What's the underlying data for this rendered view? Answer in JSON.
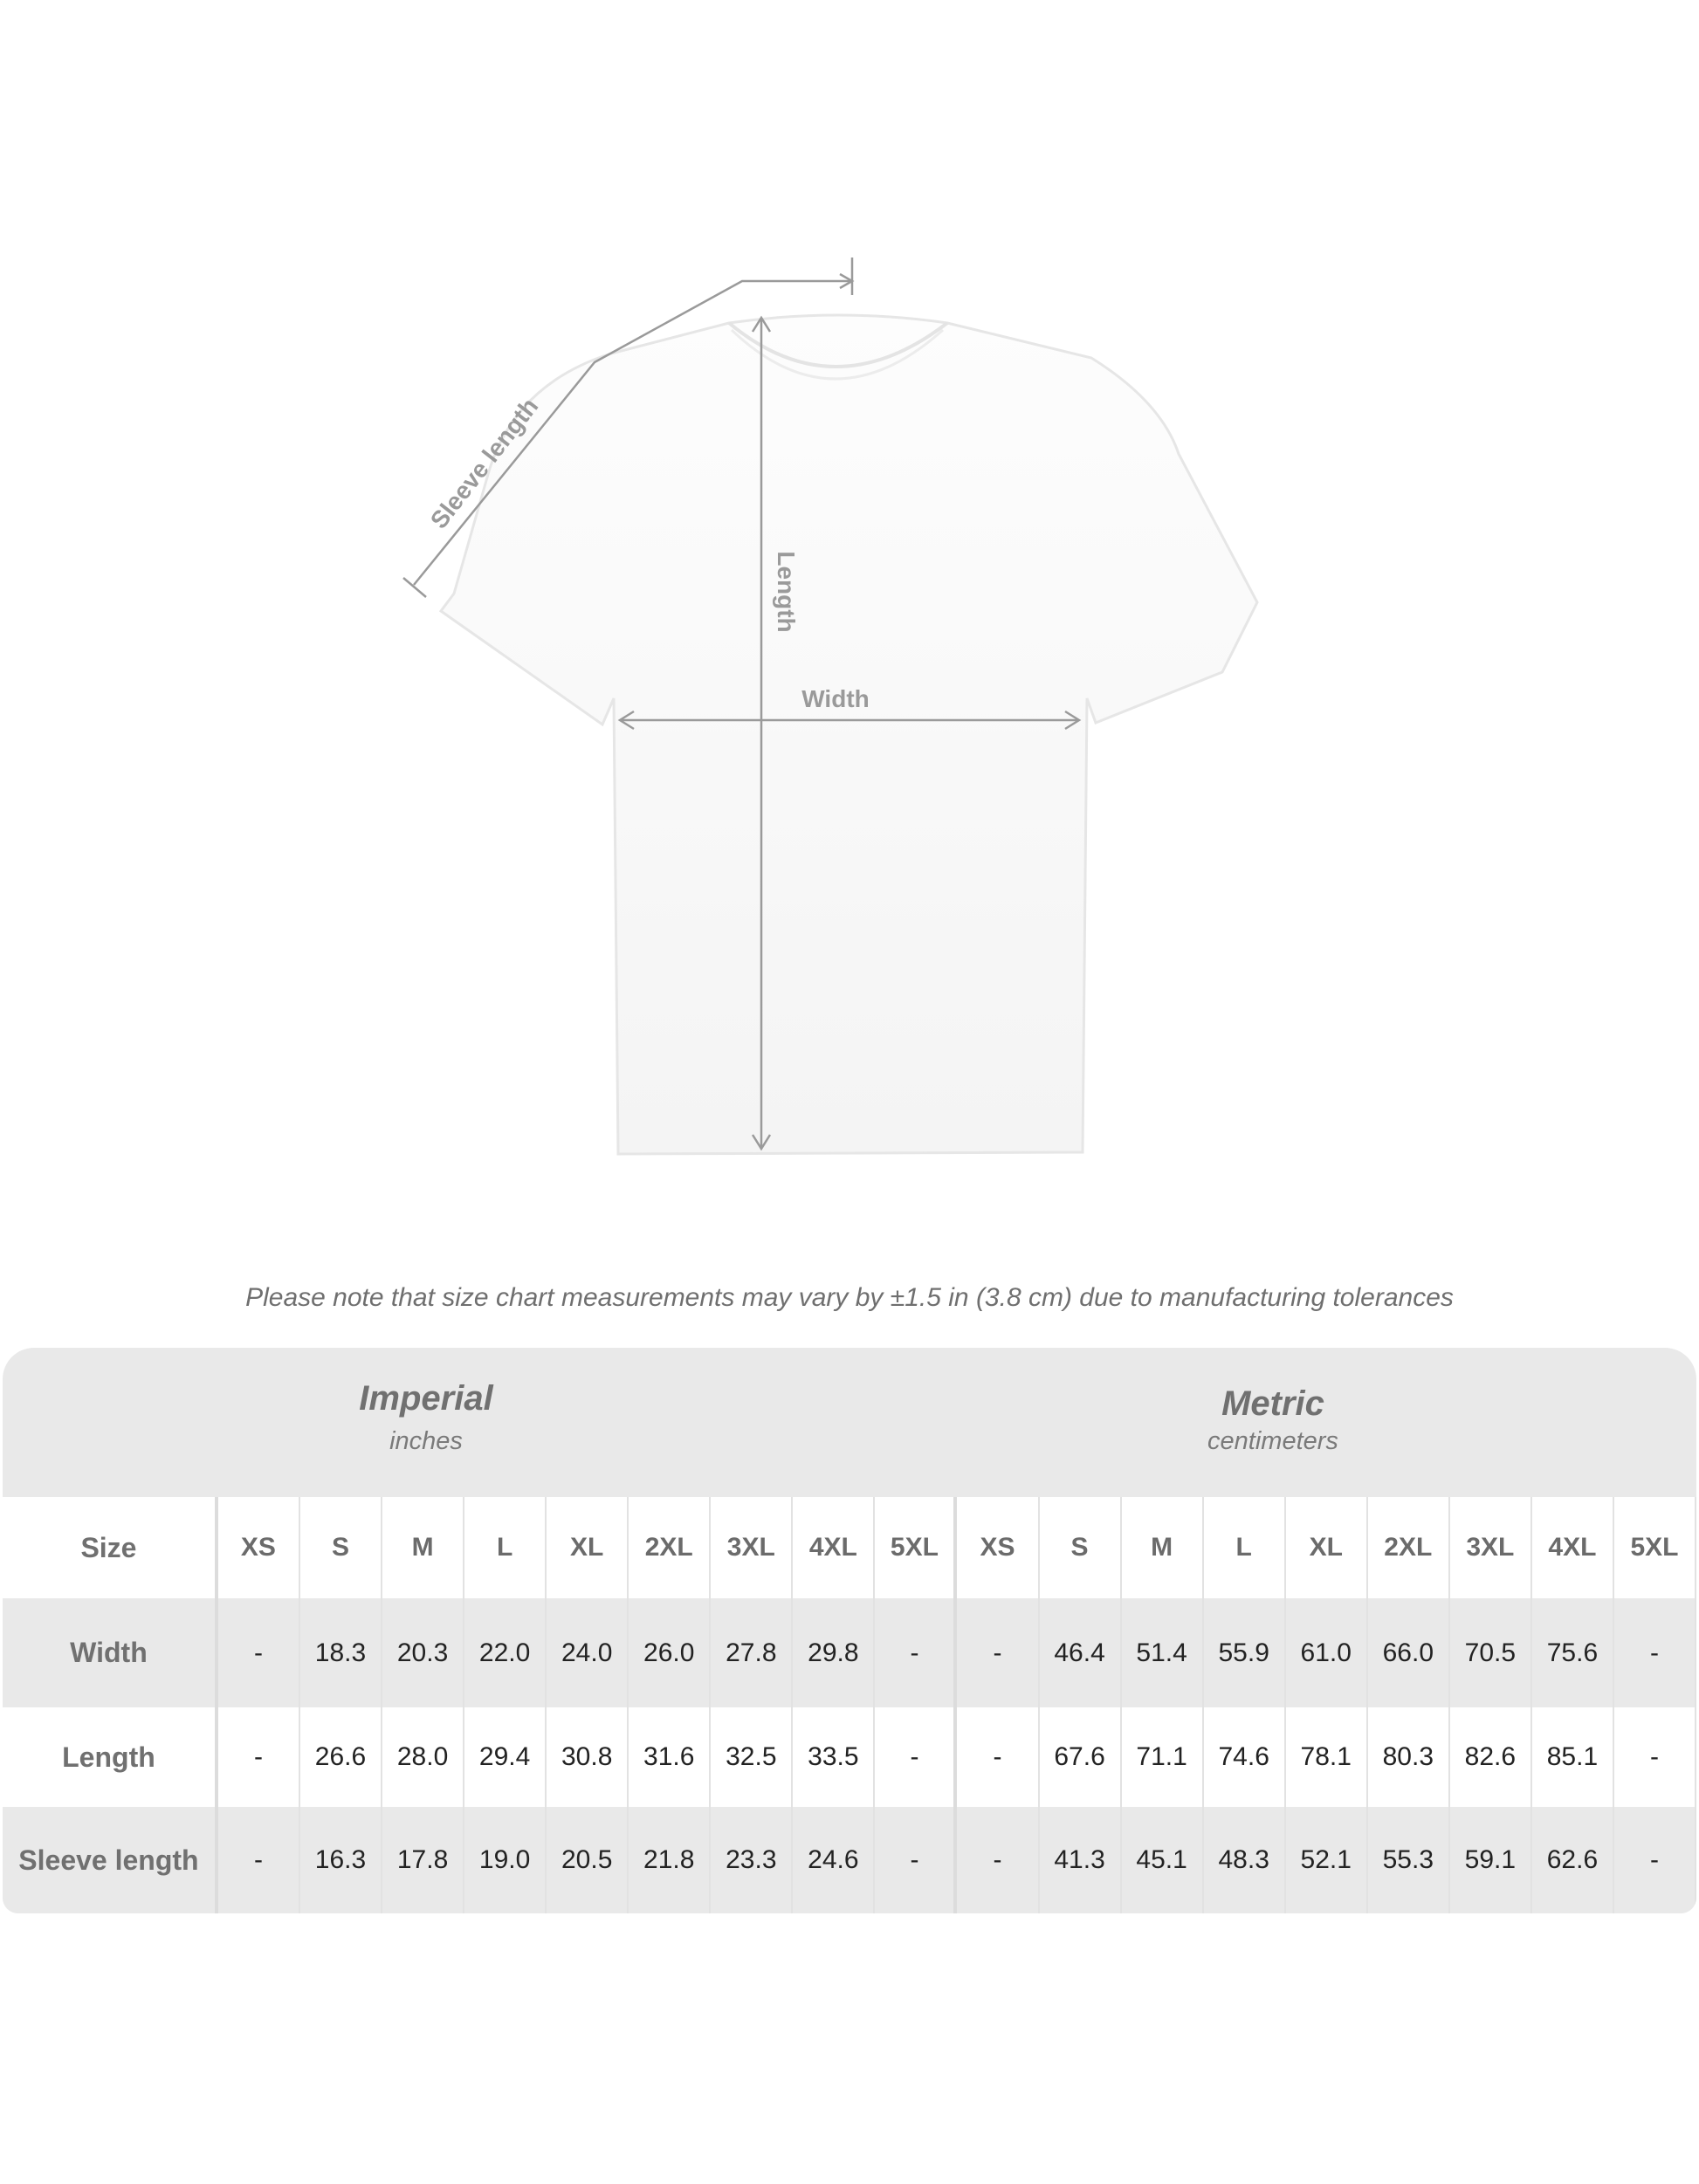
{
  "diagram": {
    "labels": {
      "sleeve": "Sleeve length",
      "length": "Length",
      "width": "Width"
    }
  },
  "note": "Please note that size chart measurements may vary by ±1.5 in (3.8 cm) due to manufacturing tolerances",
  "table": {
    "imperial": {
      "title": "Imperial",
      "unit": "inches"
    },
    "metric": {
      "title": "Metric",
      "unit": "centimeters"
    },
    "size_label": "Size",
    "sizes": [
      "XS",
      "S",
      "M",
      "L",
      "XL",
      "2XL",
      "3XL",
      "4XL",
      "5XL"
    ],
    "rows": [
      {
        "label": "Width",
        "imperial": [
          "-",
          "18.3",
          "20.3",
          "22.0",
          "24.0",
          "26.0",
          "27.8",
          "29.8",
          "-"
        ],
        "metric": [
          "-",
          "46.4",
          "51.4",
          "55.9",
          "61.0",
          "66.0",
          "70.5",
          "75.6",
          "-"
        ]
      },
      {
        "label": "Length",
        "imperial": [
          "-",
          "26.6",
          "28.0",
          "29.4",
          "30.8",
          "31.6",
          "32.5",
          "33.5",
          "-"
        ],
        "metric": [
          "-",
          "67.6",
          "71.1",
          "74.6",
          "78.1",
          "80.3",
          "82.6",
          "85.1",
          "-"
        ]
      },
      {
        "label": "Sleeve length",
        "imperial": [
          "-",
          "16.3",
          "17.8",
          "19.0",
          "20.5",
          "21.8",
          "23.3",
          "24.6",
          "-"
        ],
        "metric": [
          "-",
          "41.3",
          "45.1",
          "48.3",
          "52.1",
          "55.3",
          "59.1",
          "62.6",
          "-"
        ]
      }
    ]
  }
}
